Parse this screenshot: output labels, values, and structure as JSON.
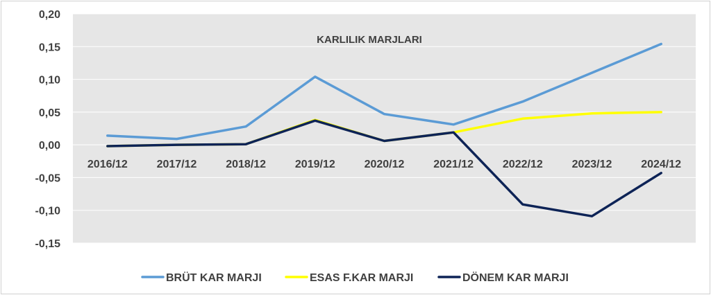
{
  "chart_data": {
    "type": "line",
    "title": "KARLILIK MARJLARI",
    "categories": [
      "2016/12",
      "2017/12",
      "2018/12",
      "2019/12",
      "2020/12",
      "2021/12",
      "2022/12",
      "2023/12",
      "2024/12"
    ],
    "ylim": [
      -0.15,
      0.2
    ],
    "yticks": [
      "0,20",
      "0,15",
      "0,10",
      "0,05",
      "0,00",
      "-0,05",
      "-0,10",
      "-0,15"
    ],
    "grid": true,
    "legend_position": "bottom",
    "background": "#e6e6e6",
    "series": [
      {
        "name": "BRÜT KAR MARJI",
        "color": "#5b9bd5",
        "values": [
          0.014,
          0.009,
          0.028,
          0.104,
          0.047,
          0.031,
          0.066,
          0.11,
          0.154
        ]
      },
      {
        "name": "ESAS F.KAR MARJI",
        "color": "#ffff00",
        "values": [
          -0.002,
          0.0,
          0.001,
          0.038,
          0.006,
          0.019,
          0.04,
          0.048,
          0.05
        ]
      },
      {
        "name": "DÖNEM KAR MARJI",
        "color": "#0d2356",
        "values": [
          -0.002,
          0.0,
          0.001,
          0.037,
          0.006,
          0.019,
          -0.091,
          -0.109,
          -0.043
        ]
      }
    ]
  }
}
